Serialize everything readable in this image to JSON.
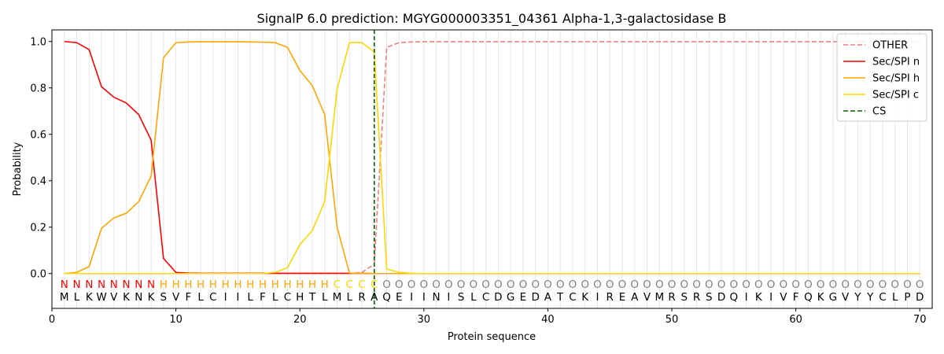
{
  "chart_data": {
    "type": "line",
    "title": "SignalP 6.0 prediction: MGYG000003351_04361 Alpha-1,3-galactosidase B",
    "xlabel": "Protein sequence",
    "ylabel": "Probability",
    "xlim": [
      0,
      71
    ],
    "ylim": [
      -0.15,
      1.05
    ],
    "xticks": [
      0,
      10,
      20,
      30,
      40,
      50,
      60,
      70
    ],
    "yticks": [
      0.0,
      0.2,
      0.4,
      0.6,
      0.8,
      1.0
    ],
    "xtick_labels": [
      "0",
      "10",
      "20",
      "30",
      "40",
      "50",
      "60",
      "70"
    ],
    "ytick_labels": [
      "0.0",
      "0.2",
      "0.4",
      "0.6",
      "0.8",
      "1.0"
    ],
    "vertical_gridlines_at_each_position": true,
    "legend_position": "top-right",
    "sequence": [
      "M",
      "L",
      "K",
      "W",
      "V",
      "K",
      "N",
      "K",
      "S",
      "V",
      "F",
      "L",
      "C",
      "I",
      "I",
      "L",
      "F",
      "L",
      "C",
      "H",
      "T",
      "L",
      "M",
      "L",
      "R",
      "A",
      "Q",
      "E",
      "I",
      "I",
      "N",
      "I",
      "S",
      "L",
      "C",
      "D",
      "G",
      "E",
      "D",
      "A",
      "T",
      "C",
      "K",
      "I",
      "R",
      "E",
      "A",
      "V",
      "M",
      "R",
      "S",
      "R",
      "S",
      "D",
      "Q",
      "I",
      "K",
      "I",
      "V",
      "F",
      "Q",
      "K",
      "G",
      "V",
      "Y",
      "Y",
      "C",
      "L",
      "P",
      "D"
    ],
    "region_labels": [
      "N",
      "N",
      "N",
      "N",
      "N",
      "N",
      "N",
      "N",
      "H",
      "H",
      "H",
      "H",
      "H",
      "H",
      "H",
      "H",
      "H",
      "H",
      "H",
      "H",
      "H",
      "H",
      "C",
      "C",
      "C",
      "C",
      "O",
      "O",
      "O",
      "O",
      "O",
      "O",
      "O",
      "O",
      "O",
      "O",
      "O",
      "O",
      "O",
      "O",
      "O",
      "O",
      "O",
      "O",
      "O",
      "O",
      "O",
      "O",
      "O",
      "O",
      "O",
      "O",
      "O",
      "O",
      "O",
      "O",
      "O",
      "O",
      "O",
      "O",
      "O",
      "O",
      "O",
      "O",
      "O",
      "O",
      "O",
      "O",
      "O",
      "O"
    ],
    "region_colors": {
      "N": "#ff0000",
      "H": "#ffa500",
      "C": "#ffd700",
      "O": "#808080"
    },
    "cleavage_site": 26,
    "series": [
      {
        "name": "OTHER",
        "color": "#f08080",
        "dash": true,
        "x": [
          1,
          2,
          3,
          4,
          5,
          6,
          7,
          8,
          9,
          10,
          11,
          12,
          13,
          14,
          15,
          16,
          17,
          18,
          19,
          20,
          21,
          22,
          23,
          24,
          25,
          26,
          27,
          28,
          29,
          30,
          31,
          32,
          33,
          34,
          35,
          36,
          37,
          38,
          39,
          40,
          41,
          42,
          43,
          44,
          45,
          46,
          47,
          48,
          49,
          50,
          51,
          52,
          53,
          54,
          55,
          56,
          57,
          58,
          59,
          60,
          61,
          62,
          63,
          64,
          65,
          66,
          67,
          68,
          69,
          70
        ],
        "values": [
          0,
          0,
          0,
          0,
          0,
          0,
          0,
          0,
          0,
          0,
          0,
          0,
          0,
          0,
          0,
          0,
          0,
          0,
          0,
          0,
          0,
          0,
          0,
          0,
          0.005,
          0.04,
          0.975,
          0.995,
          0.998,
          0.999,
          0.999,
          0.999,
          0.999,
          0.999,
          0.999,
          0.999,
          0.999,
          0.999,
          0.999,
          0.999,
          0.999,
          0.999,
          0.999,
          0.999,
          0.999,
          0.999,
          0.999,
          0.999,
          0.999,
          0.999,
          0.999,
          0.999,
          0.999,
          0.999,
          0.999,
          0.999,
          0.999,
          0.999,
          0.999,
          0.999,
          0.999,
          0.999,
          0.999,
          0.999,
          0.999,
          0.999,
          0.999,
          0.999,
          0.999,
          0.999
        ]
      },
      {
        "name": "Sec/SPI n",
        "color": "#ff0000",
        "dash": false,
        "x": [
          1,
          2,
          3,
          4,
          5,
          6,
          7,
          8,
          9,
          10,
          11,
          12,
          13,
          14,
          15,
          16,
          17,
          18,
          19,
          20,
          21,
          22,
          23,
          24,
          25,
          26,
          27,
          28,
          29,
          30,
          31,
          32,
          33,
          34,
          35,
          36,
          37,
          38,
          39,
          40,
          41,
          42,
          43,
          44,
          45,
          46,
          47,
          48,
          49,
          50,
          51,
          52,
          53,
          54,
          55,
          56,
          57,
          58,
          59,
          60,
          61,
          62,
          63,
          64,
          65,
          66,
          67,
          68,
          69,
          70
        ],
        "values": [
          1.0,
          0.995,
          0.965,
          0.805,
          0.76,
          0.735,
          0.685,
          0.575,
          0.065,
          0.005,
          0.002,
          0.001,
          0.001,
          0.001,
          0.001,
          0.001,
          0.001,
          0.001,
          0.001,
          0.001,
          0.001,
          0.001,
          0.001,
          0.001,
          0.001,
          0.0,
          0,
          0,
          0,
          0,
          0,
          0,
          0,
          0,
          0,
          0,
          0,
          0,
          0,
          0,
          0,
          0,
          0,
          0,
          0,
          0,
          0,
          0,
          0,
          0,
          0,
          0,
          0,
          0,
          0,
          0,
          0,
          0,
          0,
          0,
          0,
          0,
          0,
          0,
          0,
          0,
          0,
          0,
          0,
          0
        ]
      },
      {
        "name": "Sec/SPI h",
        "color": "#ffa500",
        "dash": false,
        "x": [
          1,
          2,
          3,
          4,
          5,
          6,
          7,
          8,
          9,
          10,
          11,
          12,
          13,
          14,
          15,
          16,
          17,
          18,
          19,
          20,
          21,
          22,
          23,
          24,
          25,
          26,
          27,
          28,
          29,
          30,
          31,
          32,
          33,
          34,
          35,
          36,
          37,
          38,
          39,
          40,
          41,
          42,
          43,
          44,
          45,
          46,
          47,
          48,
          49,
          50,
          51,
          52,
          53,
          54,
          55,
          56,
          57,
          58,
          59,
          60,
          61,
          62,
          63,
          64,
          65,
          66,
          67,
          68,
          69,
          70
        ],
        "values": [
          0.0,
          0.005,
          0.03,
          0.195,
          0.24,
          0.26,
          0.31,
          0.42,
          0.93,
          0.995,
          0.998,
          0.999,
          0.999,
          0.999,
          0.999,
          0.998,
          0.997,
          0.995,
          0.975,
          0.875,
          0.81,
          0.685,
          0.2,
          0.002,
          0.001,
          0.0,
          0,
          0,
          0,
          0,
          0,
          0,
          0,
          0,
          0,
          0,
          0,
          0,
          0,
          0,
          0,
          0,
          0,
          0,
          0,
          0,
          0,
          0,
          0,
          0,
          0,
          0,
          0,
          0,
          0,
          0,
          0,
          0,
          0,
          0,
          0,
          0,
          0,
          0,
          0,
          0,
          0,
          0,
          0,
          0
        ]
      },
      {
        "name": "Sec/SPI c",
        "color": "#ffd700",
        "dash": false,
        "x": [
          1,
          2,
          3,
          4,
          5,
          6,
          7,
          8,
          9,
          10,
          11,
          12,
          13,
          14,
          15,
          16,
          17,
          18,
          19,
          20,
          21,
          22,
          23,
          24,
          25,
          26,
          27,
          28,
          29,
          30,
          31,
          32,
          33,
          34,
          35,
          36,
          37,
          38,
          39,
          40,
          41,
          42,
          43,
          44,
          45,
          46,
          47,
          48,
          49,
          50,
          51,
          52,
          53,
          54,
          55,
          56,
          57,
          58,
          59,
          60,
          61,
          62,
          63,
          64,
          65,
          66,
          67,
          68,
          69,
          70
        ],
        "values": [
          0,
          0,
          0,
          0,
          0,
          0,
          0,
          0,
          0,
          0,
          0,
          0,
          0,
          0,
          0,
          0,
          0,
          0.005,
          0.025,
          0.125,
          0.185,
          0.31,
          0.795,
          0.995,
          0.995,
          0.955,
          0.02,
          0.005,
          0.001,
          0,
          0,
          0,
          0,
          0,
          0,
          0,
          0,
          0,
          0,
          0,
          0,
          0,
          0,
          0,
          0,
          0,
          0,
          0,
          0,
          0,
          0,
          0,
          0,
          0,
          0,
          0,
          0,
          0,
          0,
          0,
          0,
          0,
          0,
          0,
          0,
          0,
          0,
          0,
          0,
          0
        ]
      }
    ],
    "cs_legend_name": "CS",
    "cs_color": "#006400"
  }
}
